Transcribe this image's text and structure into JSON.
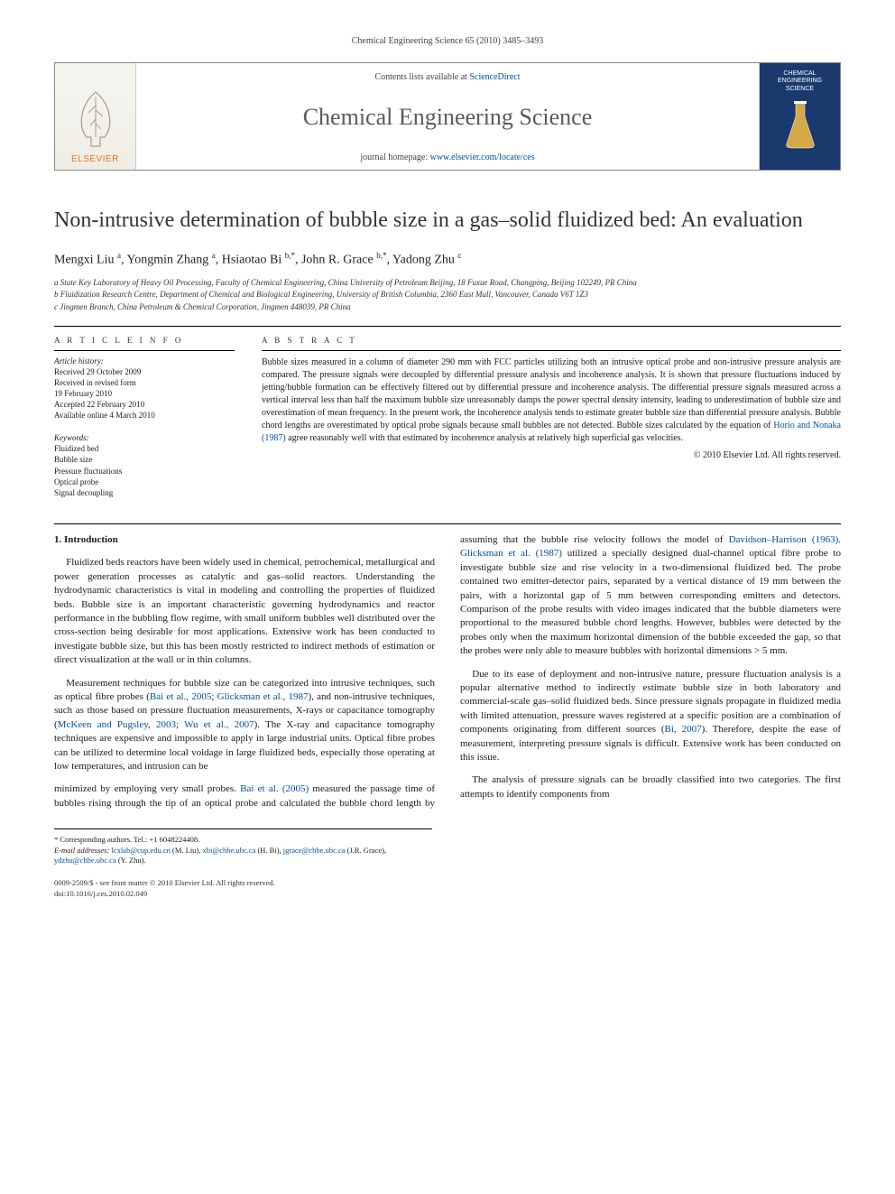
{
  "page_header": "Chemical Engineering Science 65 (2010) 3485–3493",
  "banner": {
    "contents_prefix": "Contents lists available at ",
    "contents_link": "ScienceDirect",
    "journal_name": "Chemical Engineering Science",
    "homepage_prefix": "journal homepage: ",
    "homepage_url": "www.elsevier.com/locate/ces",
    "elsevier_label": "ELSEVIER",
    "cover_line1": "CHEMICAL",
    "cover_line2": "ENGINEERING",
    "cover_line3": "SCIENCE"
  },
  "title": "Non-intrusive determination of bubble size in a gas–solid fluidized bed: An evaluation",
  "authors_html": "Mengxi Liu <sup>a</sup>, Yongmin Zhang <sup>a</sup>, Hsiaotao Bi <sup>b,*</sup>, John R. Grace <sup>b,*</sup>, Yadong Zhu <sup>c</sup>",
  "affiliations": {
    "a": "a State Key Laboratory of Heavy Oil Processing, Faculty of Chemical Engineering, China University of Petroleum Beijing, 18 Fuxue Road, Changping, Beijing 102249, PR China",
    "b": "b Fluidization Research Centre, Department of Chemical and Biological Engineering, University of British Columbia, 2360 East Mall, Vancouver, Canada V6T 1Z3",
    "c": "c Jingmen Branch, China Petroleum & Chemical Corporation, Jingmen 448039, PR China"
  },
  "meta": {
    "article_info_heading": "A R T I C L E   I N F O",
    "history_label": "Article history:",
    "history": [
      "Received 29 October 2009",
      "Received in revised form",
      "19 February 2010",
      "Accepted 22 February 2010",
      "Available online 4 March 2010"
    ],
    "keywords_label": "Keywords:",
    "keywords": [
      "Fluidized bed",
      "Bubble size",
      "Pressure fluctuations",
      "Optical probe",
      "Signal decoupling"
    ]
  },
  "abstract": {
    "heading": "A B S T R A C T",
    "text_before_link": "Bubble sizes measured in a column of diameter 290 mm with FCC particles utilizing both an intrusive optical probe and non-intrusive pressure analysis are compared. The pressure signals were decoupled by differential pressure analysis and incoherence analysis. It is shown that pressure fluctuations induced by jetting/bubble formation can be effectively filtered out by differential pressure and incoherence analysis. The differential pressure signals measured across a vertical interval less than half the maximum bubble size unreasonably damps the power spectral density intensity, leading to underestimation of bubble size and overestimation of mean frequency. In the present work, the incoherence analysis tends to estimate greater bubble size than differential pressure analysis. Bubble chord lengths are overestimated by optical probe signals because small bubbles are not detected. Bubble sizes calculated by the equation of ",
    "link": "Horio and Nonaka (1987)",
    "text_after_link": " agree reasonably well with that estimated by incoherence analysis at relatively high superficial gas velocities.",
    "copyright": "© 2010 Elsevier Ltd. All rights reserved."
  },
  "section1_heading": "1. Introduction",
  "para1": "Fluidized beds reactors have been widely used in chemical, petrochemical, metallurgical and power generation processes as catalytic and gas–solid reactors. Understanding the hydrodynamic characteristics is vital in modeling and controlling the properties of fluidized beds. Bubble size is an important characteristic governing hydrodynamics and reactor performance in the bubbling flow regime, with small uniform bubbles well distributed over the cross-section being desirable for most applications. Extensive work has been conducted to investigate bubble size, but this has been mostly restricted to indirect methods of estimation or direct visualization at the wall or in thin columns.",
  "para2_before": "Measurement techniques for bubble size can be categorized into intrusive techniques, such as optical fibre probes (",
  "para2_link1": "Bai et al., 2005",
  "para2_mid1": "; ",
  "para2_link2": "Glicksman et al., 1987",
  "para2_mid2": "), and non-intrusive techniques, such as those based on pressure fluctuation measurements, X-rays or capacitance tomography (",
  "para2_link3": "McKeen and Pugsley, 2003",
  "para2_mid3": "; ",
  "para2_link4": "Wu et al., 2007",
  "para2_after": "). The X-ray and capacitance tomography techniques are expensive and impossible to apply in large industrial units. Optical fibre probes can be utilized to determine local voidage in large fluidized beds, especially those operating at low temperatures, and intrusion can be",
  "para3_before": "minimized by employing very small probes. ",
  "para3_link1": "Bai et al. (2005)",
  "para3_mid1": " measured the passage time of bubbles rising through the tip of an optical probe and calculated the bubble chord length by assuming that the bubble rise velocity follows the model of ",
  "para3_link2": "Davidson–Harrison (1963)",
  "para3_mid2": ". ",
  "para3_link3": "Glicksman et al. (1987)",
  "para3_after": " utilized a specially designed dual-channel optical fibre probe to investigate bubble size and rise velocity in a two-dimensional fluidized bed. The probe contained two emitter-detector pairs, separated by a vertical distance of 19 mm between the pairs, with a horizontal gap of 5 mm between corresponding emitters and detectors. Comparison of the probe results with video images indicated that the bubble diameters were proportional to the measured bubble chord lengths. However, bubbles were detected by the probes only when the maximum horizontal dimension of the bubble exceeded the gap, so that the probes were only able to measure bubbles with horizontal dimensions > 5 mm.",
  "para4_before": "Due to its ease of deployment and non-intrusive nature, pressure fluctuation analysis is a popular alternative method to indirectly estimate bubble size in both laboratory and commercial-scale gas–solid fluidized beds. Since pressure signals propagate in fluidized media with limited attenuation, pressure waves registered at a specific position are a combination of components originating from different sources (",
  "para4_link": "Bi, 2007",
  "para4_after": "). Therefore, despite the ease of measurement, interpreting pressure signals is difficult. Extensive work has been conducted on this issue.",
  "para5": "The analysis of pressure signals can be broadly classified into two categories. The first attempts to identify components from",
  "footnotes": {
    "corr": "* Corresponding authors. Tel.: +1 6048224408.",
    "email_label": "E-mail addresses: ",
    "emails": [
      {
        "addr": "lcxlab@cup.edu.cn",
        "who": " (M. Liu), "
      },
      {
        "addr": "xbi@chbe.ubc.ca",
        "who": " (H. Bi), "
      },
      {
        "addr": "jgrace@chbe.ubc.ca",
        "who": " (J.R. Grace), "
      },
      {
        "addr": "ydzhu@chbe.ubc.ca",
        "who": " (Y. Zhu)."
      }
    ]
  },
  "footer": {
    "line1": "0009-2509/$ - see front matter © 2010 Elsevier Ltd. All rights reserved.",
    "line2": "doi:10.1016/j.ces.2010.02.049"
  },
  "colors": {
    "link": "#0050a0",
    "elsevier_orange": "#e67817",
    "cover_bg": "#1a3a6e"
  }
}
